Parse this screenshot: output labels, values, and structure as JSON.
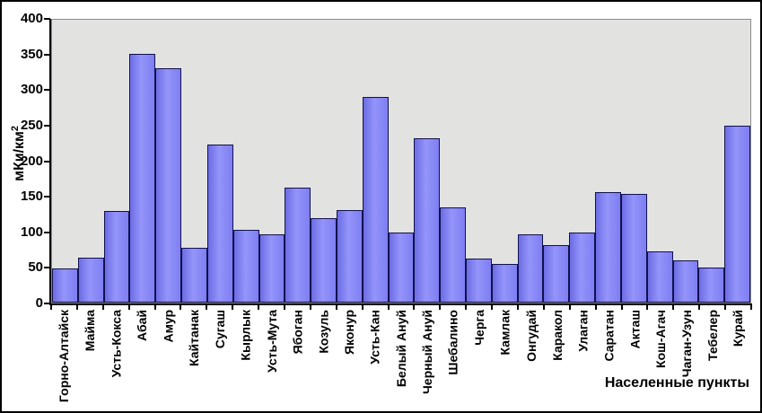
{
  "chart_data": {
    "type": "bar",
    "title": "",
    "ylabel": "мКи/км²",
    "ylabel_base": "мКи/км",
    "ylabel_sup": "2",
    "xlabel": "Населенные пункты",
    "ylim": [
      0,
      400
    ],
    "yticks": [
      400,
      350,
      300,
      250,
      200,
      150,
      100,
      50,
      0
    ],
    "grid": false,
    "legend": false,
    "categories": [
      "Горно-Алтайск",
      "Майма",
      "Усть-Кокса",
      "Абай",
      "Амур",
      "Кайтанак",
      "Сугаш",
      "Кырлык",
      "Усть-Мута",
      "Ябоган",
      "Козуль",
      "Яконур",
      "Усть-Кан",
      "Белый Ануй",
      "Черный Ануй",
      "Шебалино",
      "Черга",
      "Камлак",
      "Онгудай",
      "Каракол",
      "Улаган",
      "Саратан",
      "Акташ",
      "Кош-Агач",
      "Чаган-Узун",
      "Тебелер",
      "Курай"
    ],
    "values": [
      48,
      64,
      130,
      352,
      332,
      77,
      223,
      103,
      96,
      163,
      120,
      131,
      291,
      99,
      233,
      135,
      62,
      54,
      96,
      81,
      99,
      156,
      154,
      72,
      60,
      50,
      250
    ],
    "colors": {
      "bar_fill": "#7e7ef2",
      "bar_fill_light": "#9494fa",
      "bar_fill_dark": "#6c6ce4",
      "bar_border": "#11114d",
      "plot_bg": "#e2e2e0",
      "plot_border": "#8c8c8c",
      "axis": "#000000",
      "frame": "#000000",
      "background": "#ffffff",
      "text": "#000000"
    }
  }
}
